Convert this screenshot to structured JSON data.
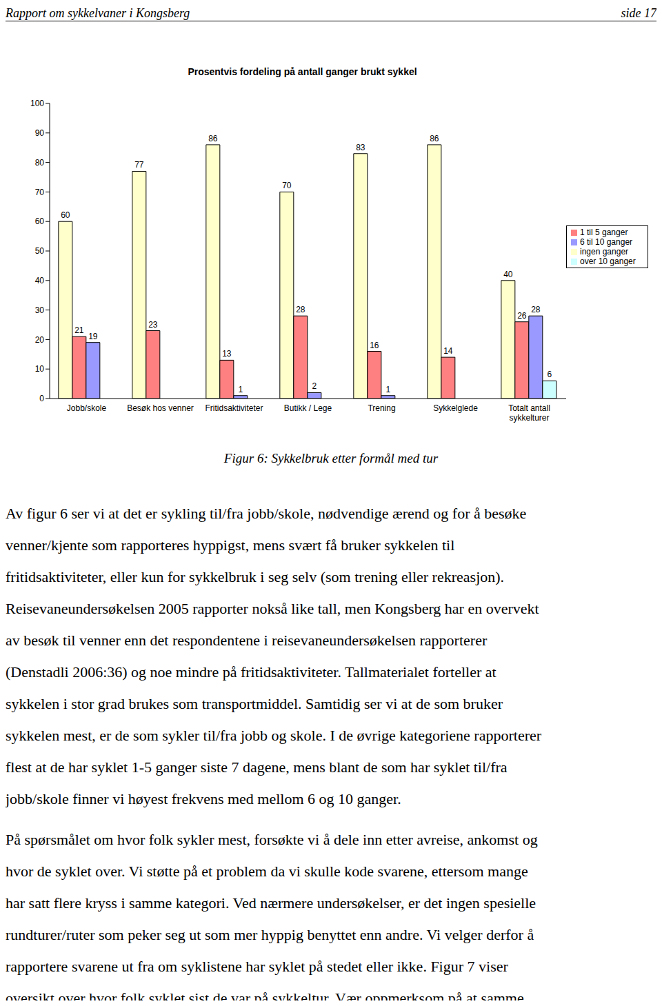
{
  "header": {
    "title": "Rapport om sykkelvaner i Kongsberg",
    "page": "side 17"
  },
  "chart_data": {
    "type": "bar",
    "title": "Prosentvis fordeling på antall ganger brukt sykkel",
    "categories": [
      "Jobb/skole",
      "Besøk hos venner",
      "Fritidsaktiviteter",
      "Butikk / Lege",
      "Trening",
      "Sykkelglede",
      "Totalt antall sykkelturer"
    ],
    "series": [
      {
        "name": "ingen ganger",
        "color": "#ffffcc",
        "values": [
          60,
          77,
          86,
          70,
          83,
          86,
          40
        ]
      },
      {
        "name": "1 til 5 ganger",
        "color": "#ff8080",
        "values": [
          21,
          23,
          13,
          28,
          16,
          14,
          26
        ]
      },
      {
        "name": "6 til 10 ganger",
        "color": "#9999ff",
        "values": [
          19,
          null,
          1,
          2,
          1,
          null,
          28
        ]
      },
      {
        "name": "over 10 ganger",
        "color": "#ccffff",
        "values": [
          null,
          null,
          null,
          null,
          null,
          null,
          6
        ]
      }
    ],
    "ylim": [
      0,
      100
    ],
    "yticks": [
      0,
      10,
      20,
      30,
      40,
      50,
      60,
      70,
      80,
      90,
      100
    ],
    "grid": false,
    "legend": "right",
    "data_labels": true
  },
  "caption": "Figur 6: Sykkelbruk etter formål med tur",
  "paragraphs": [
    [
      "Av figur 6 ser vi at det er sykling til/fra jobb/skole, nødvendige ærend og for å besøke",
      "venner/kjente som rapporteres hyppigst, mens svært få bruker sykkelen til",
      "fritidsaktiviteter, eller kun for sykkelbruk i seg selv (som trening eller rekreasjon).",
      "Reisevaneundersøkelsen 2005 rapporter nokså like tall, men Kongsberg har en overvekt",
      "av besøk til venner enn det respondentene i reisevaneundersøkelsen rapporterer",
      "(Denstadli 2006:36) og noe mindre på fritidsaktiviteter. Tallmaterialet forteller at",
      "sykkelen i stor grad brukes som transportmiddel. Samtidig ser vi at de som bruker",
      "sykkelen mest, er de som sykler til/fra jobb og skole. I de øvrige kategoriene rapporterer",
      "flest at de har syklet 1-5 ganger siste 7 dagene, mens blant de som har syklet til/fra",
      "jobb/skole finner vi høyest frekvens med mellom 6 og 10 ganger."
    ],
    [
      "På spørsmålet om hvor folk sykler mest, forsøkte vi å dele inn etter avreise, ankomst og",
      "hvor de syklet over. Vi støtte på et problem da vi skulle kode svarene, ettersom mange",
      "har satt flere kryss i samme kategori. Ved nærmere undersøkelser, er det ingen spesielle",
      "rundturer/ruter som peker seg ut som mer hyppig benyttet enn andre. Vi velger derfor å",
      "rapportere svarene ut fra om syklistene har syklet på stedet eller ikke. Figur 7 viser",
      "oversikt over hvor folk syklet sist de var på sykkeltur. Vær oppmerksom på at samme"
    ]
  ]
}
